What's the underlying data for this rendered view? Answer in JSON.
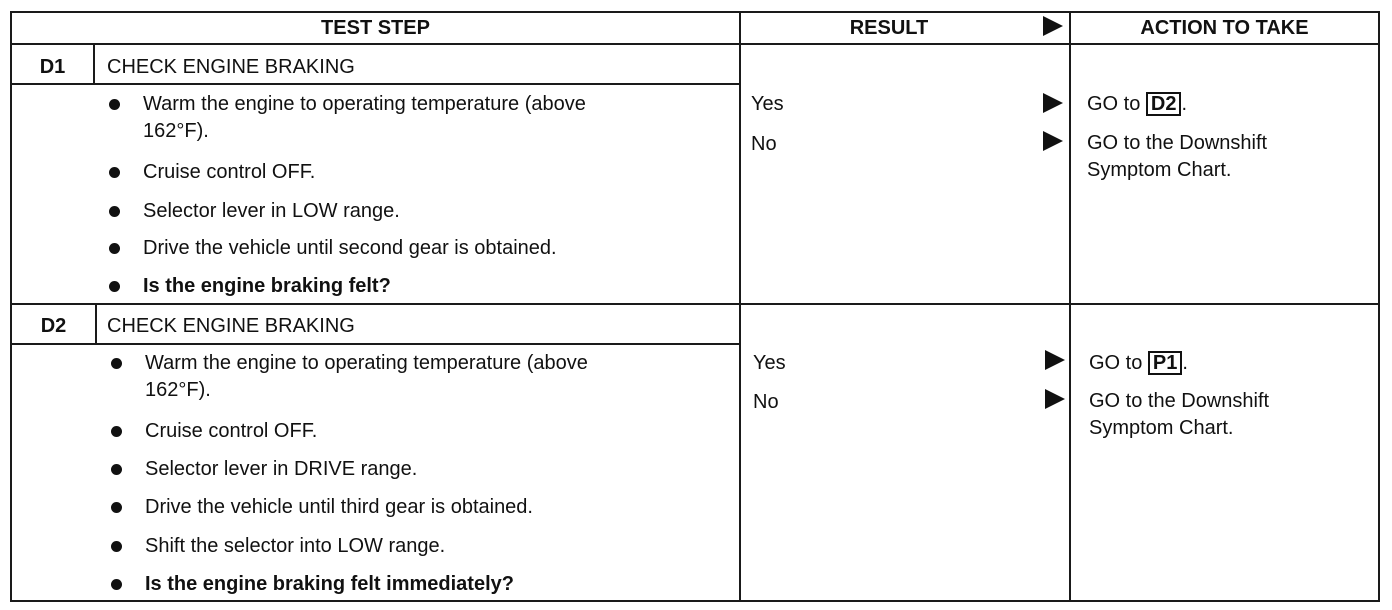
{
  "header": {
    "test_step": "TEST STEP",
    "result": "RESULT",
    "action": "ACTION TO TAKE"
  },
  "steps": [
    {
      "id": "D1",
      "title": "CHECK ENGINE BRAKING",
      "bullets": [
        "Warm the engine to operating temperature (above",
        "162°F).",
        "Cruise control OFF.",
        "Selector lever in LOW range.",
        "Drive the vehicle until second gear is obtained.",
        "Is the engine braking felt?"
      ],
      "results": [
        "Yes",
        "No"
      ],
      "actions": {
        "yes_prefix": "GO to ",
        "yes_ref": "D2",
        "yes_suffix": ".",
        "no_line1": "GO to the Downshift",
        "no_line2": "Symptom Chart."
      }
    },
    {
      "id": "D2",
      "title": "CHECK ENGINE BRAKING",
      "bullets": [
        "Warm the engine to operating temperature (above",
        "162°F).",
        "Cruise control OFF.",
        "Selector lever in DRIVE range.",
        "Drive the vehicle until third gear is obtained.",
        "Shift the selector into LOW range.",
        "Is the engine braking felt immediately?"
      ],
      "results": [
        "Yes",
        "No"
      ],
      "actions": {
        "yes_prefix": "GO to ",
        "yes_ref": "P1",
        "yes_suffix": ".",
        "no_line1": "GO to the Downshift",
        "no_line2": "Symptom Chart."
      }
    }
  ]
}
